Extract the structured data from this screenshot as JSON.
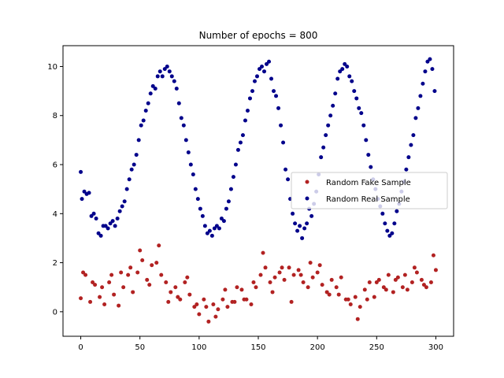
{
  "chart_data": {
    "type": "scatter",
    "title": "Number of epochs = 800",
    "xlabel": "",
    "ylabel": "",
    "xlim": [
      -15,
      315
    ],
    "ylim": [
      -1,
      10.85
    ],
    "xticks": [
      0,
      50,
      100,
      150,
      200,
      250,
      300
    ],
    "yticks": [
      0,
      2,
      4,
      6,
      8,
      10
    ],
    "grid": false,
    "legend_position": "center-right",
    "series": [
      {
        "name": "Random Fake Sample",
        "color": "#b22222",
        "x": [
          0,
          4,
          8,
          12,
          16,
          20,
          24,
          28,
          32,
          36,
          40,
          44,
          48,
          52,
          56,
          60,
          64,
          68,
          72,
          76,
          80,
          84,
          88,
          92,
          96,
          100,
          104,
          108,
          112,
          116,
          120,
          124,
          128,
          132,
          136,
          140,
          144,
          148,
          152,
          156,
          160,
          164,
          168,
          172,
          176,
          180,
          184,
          188,
          192,
          196,
          200,
          204,
          208,
          212,
          216,
          220,
          224,
          228,
          232,
          236,
          240,
          244,
          248,
          252,
          256,
          260,
          264,
          268,
          272,
          276,
          280,
          284,
          288,
          292,
          296,
          300,
          2,
          10,
          18,
          26,
          34,
          42,
          50,
          58,
          66,
          74,
          82,
          90,
          98,
          106,
          114,
          122,
          130,
          138,
          146,
          154,
          162,
          170,
          178,
          186,
          194,
          202,
          210,
          218,
          226,
          234,
          242,
          250,
          258,
          266,
          274,
          282,
          290,
          298
        ],
        "y": [
          0.55,
          1.5,
          0.4,
          1.1,
          0.6,
          0.3,
          1.2,
          0.7,
          0.25,
          1.0,
          1.5,
          0.8,
          1.6,
          2.1,
          1.3,
          1.9,
          2.0,
          1.5,
          1.2,
          0.8,
          1.0,
          0.5,
          1.2,
          0.7,
          0.2,
          -0.1,
          0.5,
          -0.4,
          0.3,
          0.1,
          0.5,
          0.2,
          0.4,
          1.0,
          0.9,
          0.5,
          0.3,
          1.0,
          1.5,
          1.8,
          1.2,
          1.4,
          1.6,
          1.3,
          1.8,
          1.5,
          1.7,
          1.2,
          1.0,
          1.4,
          1.6,
          1.1,
          0.8,
          1.3,
          1.0,
          1.4,
          0.5,
          0.3,
          0.6,
          0.2,
          0.9,
          1.2,
          0.6,
          1.3,
          1.0,
          1.5,
          0.8,
          1.4,
          1.0,
          0.9,
          1.2,
          1.6,
          1.3,
          1.0,
          1.2,
          1.7,
          1.6,
          1.2,
          1.0,
          1.5,
          1.6,
          1.8,
          2.5,
          1.1,
          2.7,
          0.4,
          0.6,
          1.4,
          0.3,
          0.2,
          -0.2,
          0.9,
          0.4,
          0.5,
          1.2,
          2.4,
          0.8,
          1.8,
          0.4,
          1.5,
          2.0,
          1.9,
          0.7,
          0.7,
          0.5,
          -0.3,
          0.5,
          1.2,
          0.9,
          1.3,
          1.5,
          1.8,
          1.1,
          2.3
        ],
        "marker": "circle"
      },
      {
        "name": "Random Real Sample",
        "color": "#00008b",
        "x": [
          0,
          1,
          3,
          5,
          7,
          9,
          11,
          13,
          15,
          17,
          19,
          21,
          23,
          25,
          27,
          29,
          31,
          33,
          35,
          37,
          39,
          41,
          43,
          45,
          47,
          49,
          51,
          53,
          55,
          57,
          59,
          61,
          63,
          65,
          67,
          69,
          71,
          73,
          75,
          77,
          79,
          81,
          83,
          85,
          87,
          89,
          91,
          93,
          95,
          97,
          99,
          101,
          103,
          105,
          107,
          109,
          111,
          113,
          115,
          117,
          119,
          121,
          123,
          125,
          127,
          129,
          131,
          133,
          135,
          137,
          139,
          141,
          143,
          145,
          147,
          149,
          151,
          153,
          155,
          157,
          159,
          161,
          163,
          165,
          167,
          169,
          171,
          173,
          175,
          177,
          179,
          181,
          183,
          185,
          187,
          189,
          191,
          193,
          195,
          197,
          199,
          201,
          203,
          205,
          207,
          209,
          211,
          213,
          215,
          217,
          219,
          221,
          223,
          225,
          227,
          229,
          231,
          233,
          235,
          237,
          239,
          241,
          243,
          245,
          247,
          249,
          251,
          253,
          255,
          257,
          259,
          261,
          263,
          265,
          267,
          269,
          271,
          273,
          275,
          277,
          279,
          281,
          283,
          285,
          287,
          289,
          291,
          293,
          295,
          297,
          299
        ],
        "y": [
          5.7,
          4.6,
          4.9,
          4.8,
          4.85,
          3.9,
          4.0,
          3.8,
          3.2,
          3.1,
          3.5,
          3.5,
          3.4,
          3.6,
          3.7,
          3.5,
          3.8,
          4.1,
          4.3,
          4.5,
          5.0,
          5.4,
          5.8,
          6.0,
          6.4,
          7.0,
          7.6,
          7.8,
          8.2,
          8.5,
          8.9,
          9.2,
          9.1,
          9.6,
          9.8,
          9.6,
          9.9,
          10.0,
          9.8,
          9.6,
          9.4,
          9.1,
          8.5,
          7.9,
          7.6,
          7.0,
          6.5,
          6.0,
          5.6,
          5.0,
          4.6,
          4.2,
          3.9,
          3.5,
          3.2,
          3.3,
          3.1,
          3.4,
          3.5,
          3.4,
          3.8,
          3.7,
          4.2,
          4.5,
          5.0,
          5.5,
          6.0,
          6.6,
          6.9,
          7.2,
          7.8,
          8.2,
          8.7,
          9.0,
          9.4,
          9.6,
          9.9,
          10.0,
          9.8,
          10.1,
          10.2,
          9.5,
          9.0,
          8.8,
          8.3,
          7.6,
          6.9,
          5.8,
          5.4,
          4.6,
          4.0,
          3.6,
          3.3,
          3.5,
          3.0,
          3.4,
          3.6,
          4.2,
          3.9,
          4.4,
          4.9,
          5.6,
          6.3,
          6.7,
          7.2,
          7.6,
          8.0,
          8.4,
          8.9,
          9.5,
          9.8,
          9.9,
          10.1,
          10.0,
          9.6,
          9.4,
          9.0,
          8.7,
          8.3,
          8.1,
          7.6,
          7.0,
          6.4,
          5.9,
          5.4,
          5.0,
          4.6,
          4.3,
          4.0,
          3.6,
          3.3,
          3.1,
          3.2,
          3.6,
          4.1,
          4.4,
          4.9,
          5.3,
          5.8,
          6.3,
          6.8,
          7.2,
          7.9,
          8.3,
          8.8,
          9.3,
          9.8,
          10.2,
          10.3,
          9.9,
          9.0
        ],
        "marker": "circle"
      }
    ]
  }
}
